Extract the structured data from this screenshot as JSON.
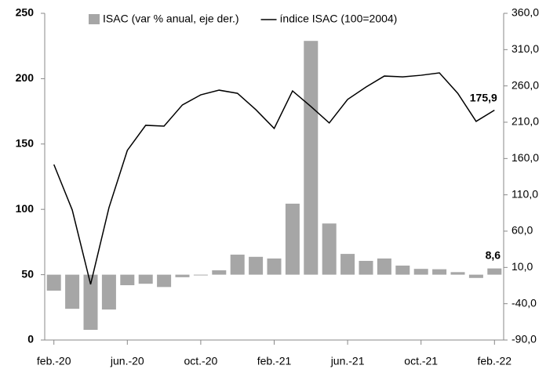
{
  "chart_data": {
    "type": "bar-line",
    "categories": [
      "feb.-20",
      null,
      null,
      null,
      "jun.-20",
      null,
      null,
      null,
      "oct.-20",
      null,
      null,
      null,
      "feb.-21",
      null,
      null,
      null,
      "jun.-21",
      null,
      null,
      null,
      "oct.-21",
      null,
      null,
      null,
      "feb.-22"
    ],
    "series": [
      {
        "name": "ISAC (var % anual, eje der.)",
        "type": "bar",
        "axis": "y2",
        "color": "#a6a6a6",
        "values": [
          -22,
          -47,
          -76,
          -48,
          -14.5,
          -12.5,
          -17,
          -3.5,
          -1,
          6,
          27.6,
          24.6,
          22.3,
          97.8,
          322,
          70.5,
          28.6,
          19,
          22.3,
          12.5,
          8,
          7.5,
          3.5,
          -4.5,
          8.6
        ],
        "value_labels": [
          null,
          null,
          null,
          null,
          null,
          null,
          null,
          null,
          null,
          null,
          null,
          null,
          null,
          null,
          null,
          null,
          null,
          null,
          null,
          null,
          null,
          null,
          null,
          null,
          "8,6"
        ]
      },
      {
        "name": "índice ISAC (100=2004)",
        "type": "line",
        "axis": "y",
        "color": "#000000",
        "values": [
          134.3,
          99.5,
          42.6,
          101.3,
          145.1,
          164.3,
          163.7,
          179.9,
          187.6,
          191.2,
          188.8,
          176.3,
          161.9,
          190.6,
          178.7,
          166.1,
          184.1,
          193.6,
          202.0,
          201.4,
          202.6,
          204.4,
          188.8,
          167.3,
          175.9
        ],
        "value_labels": [
          null,
          null,
          null,
          null,
          null,
          null,
          null,
          null,
          null,
          null,
          null,
          null,
          null,
          null,
          null,
          null,
          null,
          null,
          null,
          null,
          null,
          null,
          null,
          null,
          "175,9"
        ]
      }
    ],
    "ylim": [
      0,
      250
    ],
    "yticks": [
      0,
      50,
      100,
      150,
      200,
      250
    ],
    "y2lim": [
      -90,
      360
    ],
    "y2ticks": [
      {
        "value": -90,
        "label": "-90,0"
      },
      {
        "value": -40,
        "label": "-40,0"
      },
      {
        "value": 10,
        "label": "10,0"
      },
      {
        "value": 60,
        "label": "60,0"
      },
      {
        "value": 110,
        "label": "110,0"
      },
      {
        "value": 160,
        "label": "160,0"
      },
      {
        "value": 210,
        "label": "210,0"
      },
      {
        "value": 260,
        "label": "260,0"
      },
      {
        "value": 310,
        "label": "310,0"
      },
      {
        "value": 360,
        "label": "360,0"
      }
    ],
    "negative_tick_color": "#ff0000",
    "legend": "top"
  }
}
